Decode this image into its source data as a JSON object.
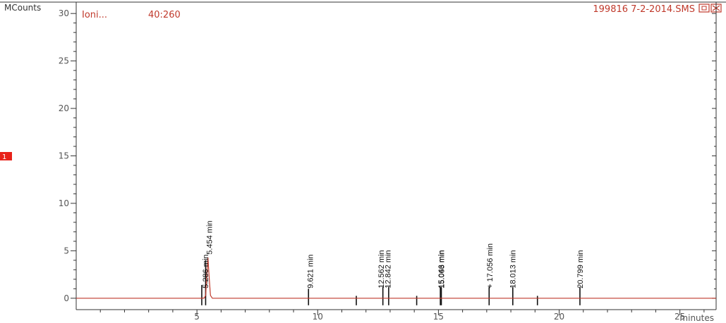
{
  "window": {
    "trace_name": "Ioni...",
    "trace_range": "40:260",
    "file_name": "199816 7-2-2014.SMS",
    "trace_marker": "1"
  },
  "colors": {
    "trace": "#c0392b",
    "axis": "#333333",
    "marker_bg": "#e8221a",
    "header_text": "#c0392b"
  },
  "chart_data": {
    "type": "line",
    "title": "",
    "xlabel": "minutes",
    "ylabel": "MCounts",
    "xlim": [
      0,
      26.5
    ],
    "ylim": [
      -1.2,
      31.2
    ],
    "xticks": [
      5,
      10,
      15,
      20,
      25
    ],
    "yticks": [
      0,
      5,
      10,
      15,
      20,
      25,
      30
    ],
    "grid": false,
    "series": [
      {
        "x": [
          0,
          5.2,
          5.3,
          5.36,
          5.4,
          5.454,
          5.5,
          5.56,
          5.64,
          9.62,
          12.56,
          12.84,
          15.05,
          17.06,
          26.5
        ],
        "values": [
          0,
          0,
          0.02,
          0.3,
          2.0,
          4.3,
          2.5,
          0.3,
          0,
          0,
          0,
          0,
          0,
          0,
          0
        ]
      }
    ],
    "peaks": [
      {
        "rt": 5.286,
        "label": "5.286 min"
      },
      {
        "rt": 5.454,
        "label": "5.454 min"
      },
      {
        "rt": 9.621,
        "label": "9.621 min"
      },
      {
        "rt": 12.562,
        "label": "12.562 min"
      },
      {
        "rt": 12.842,
        "label": "12.842 min"
      },
      {
        "rt": 15.046,
        "label": "15.046 min"
      },
      {
        "rt": 15.063,
        "label": "15.063 min"
      },
      {
        "rt": 17.056,
        "label": "+ 17.056 min"
      },
      {
        "rt": 18.013,
        "label": "18.013 min"
      },
      {
        "rt": 20.799,
        "label": "20.799 min"
      }
    ],
    "baseline_markers": [
      {
        "x": 5.2,
        "height": 1.4
      },
      {
        "x": 5.36,
        "height": 4.0
      },
      {
        "x": 9.62,
        "height": 1.0
      },
      {
        "x": 11.6,
        "height": 0.25
      },
      {
        "x": 12.7,
        "height": 1.2
      },
      {
        "x": 12.94,
        "height": 1.2
      },
      {
        "x": 14.1,
        "height": 0.25
      },
      {
        "x": 15.08,
        "height": 1.2
      },
      {
        "x": 15.12,
        "height": 1.2
      },
      {
        "x": 17.1,
        "height": 1.2
      },
      {
        "x": 18.08,
        "height": 1.2
      },
      {
        "x": 19.1,
        "height": 0.25
      },
      {
        "x": 20.86,
        "height": 1.2
      }
    ]
  }
}
